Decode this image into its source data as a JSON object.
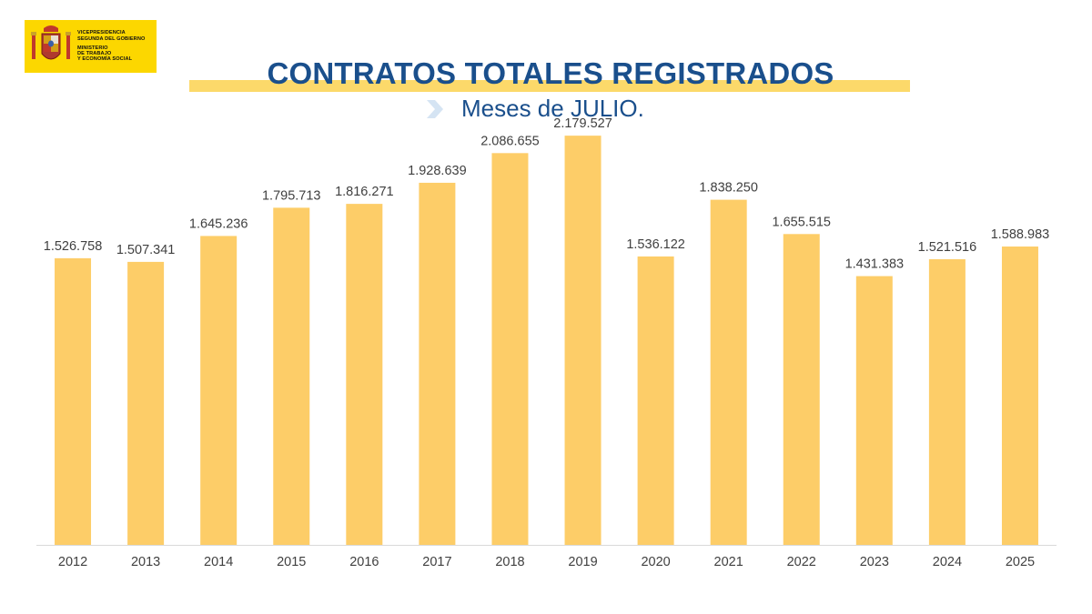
{
  "logo": {
    "line1": "VICEPRESIDENCIA",
    "line2": "SEGUNDA DEL GOBIERNO",
    "line3": "MINISTERIO",
    "line4": "DE TRABAJO",
    "line5": "Y ECONOMÍA SOCIAL"
  },
  "chart_data": {
    "type": "bar",
    "title": "CONTRATOS TOTALES REGISTRADOS",
    "subtitle": "Meses de JULIO.",
    "categories": [
      "2012",
      "2013",
      "2014",
      "2015",
      "2016",
      "2017",
      "2018",
      "2019",
      "2020",
      "2021",
      "2022",
      "2023",
      "2024",
      "2025"
    ],
    "values": [
      1526758,
      1507341,
      1645236,
      1795713,
      1816271,
      1928639,
      2086655,
      2179527,
      1536122,
      1838250,
      1655515,
      1431383,
      1521516,
      1588983
    ],
    "data_labels": [
      "1.526.758",
      "1.507.341",
      "1.645.236",
      "1.795.713",
      "1.816.271",
      "1.928.639",
      "2.086.655",
      "2.179.527",
      "1.536.122",
      "1.838.250",
      "1.655.515",
      "1.431.383",
      "1.521.516",
      "1.588.983"
    ],
    "ylim": [
      0,
      2500000
    ],
    "bar_color": "#fdcd68",
    "title_color": "#1a4f8c",
    "grid": false,
    "legend": "none"
  }
}
